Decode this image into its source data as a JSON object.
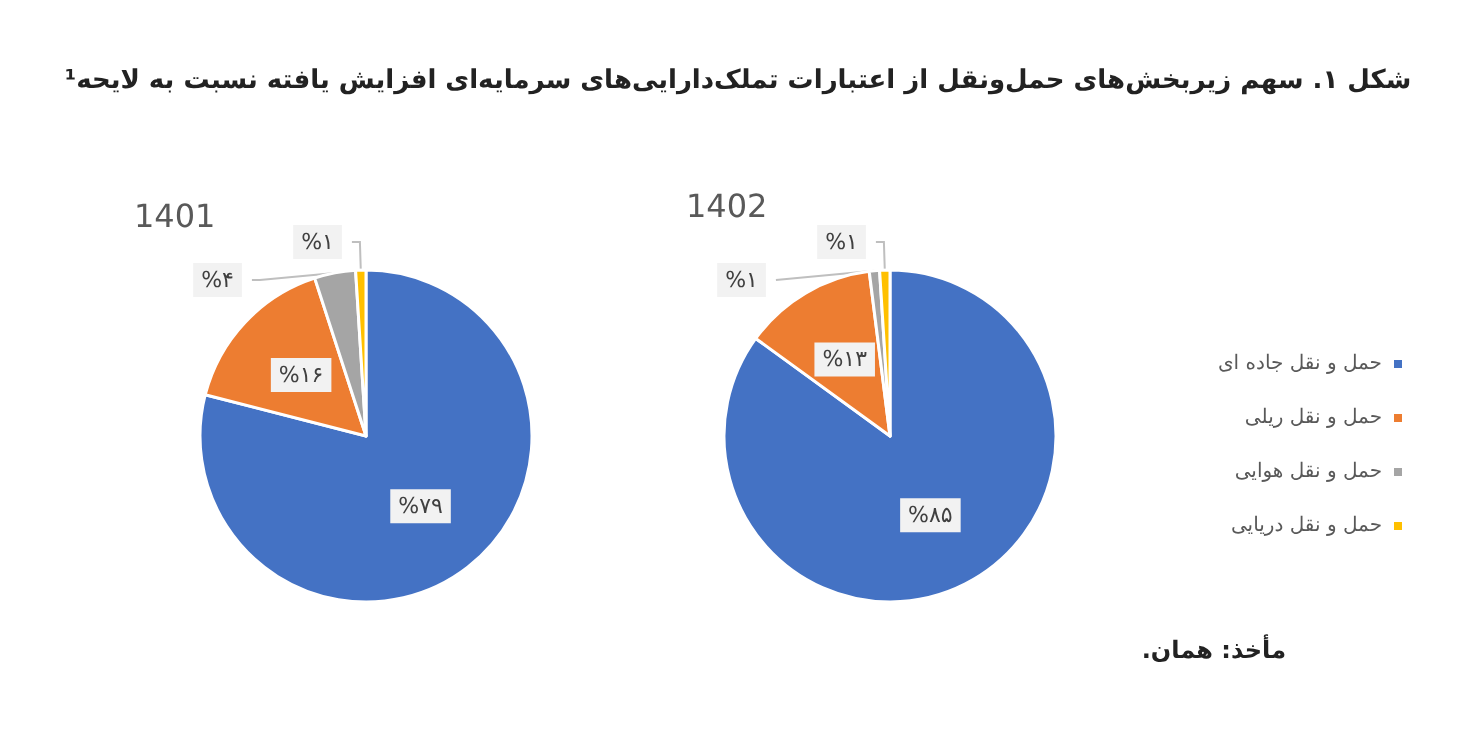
{
  "chart_data": {
    "type": "pie",
    "title": "شکل ۱. سهم زیربخش‌های حمل‌ونقل از اعتبارات تملک‌دارایی‌های سرمایه‌ای افزایش یافته نسبت به لایحه¹",
    "categories": [
      "حمل و نقل جاده ای",
      "حمل و نقل ریلی",
      "حمل و نقل هوایی",
      "حمل و نقل دریایی"
    ],
    "colors": [
      "#4472c4",
      "#ed7d31",
      "#a5a5a5",
      "#ffc000"
    ],
    "series": [
      {
        "name": "1401",
        "values": [
          79,
          16,
          4,
          1
        ],
        "value_labels": [
          "%۷۹",
          "%۱۶",
          "%۴",
          "%۱"
        ]
      },
      {
        "name": "1402",
        "values": [
          85,
          13,
          1,
          1
        ],
        "value_labels": [
          "%۸۵",
          "%۱۳",
          "%۱",
          "%۱"
        ]
      }
    ],
    "legend": "right",
    "annotations": [
      "مأخذ: همان."
    ]
  }
}
